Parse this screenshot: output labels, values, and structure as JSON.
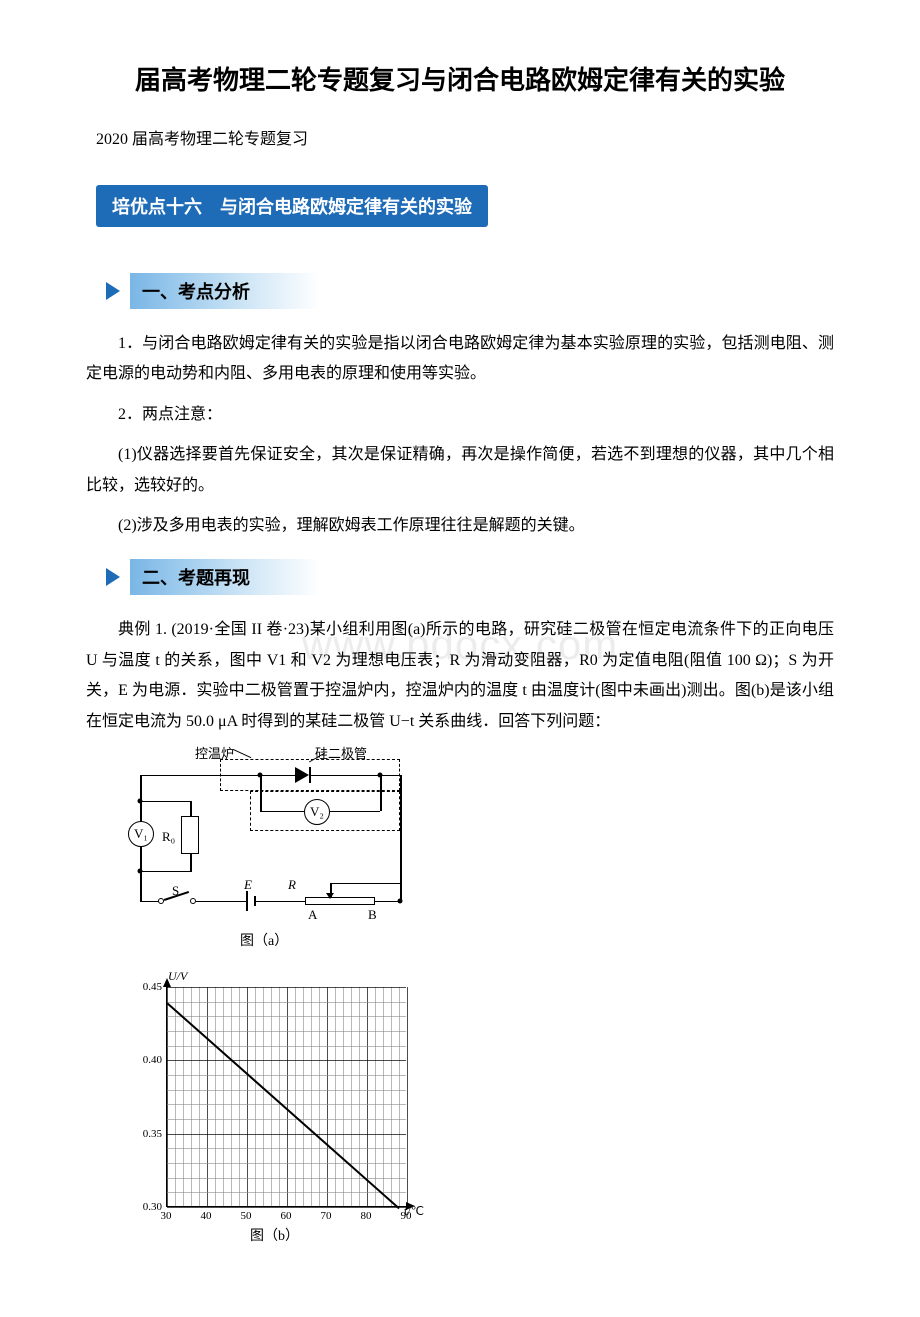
{
  "title": "届高考物理二轮专题复习与闭合电路欧姆定律有关的实验",
  "subtitle": "2020 届高考物理二轮专题复习",
  "banner_main": "培优点十六　与闭合电路欧姆定律有关的实验",
  "section1_header": "一、考点分析",
  "para1": "1．与闭合电路欧姆定律有关的实验是指以闭合电路欧姆定律为基本实验原理的实验，包括测电阻、测定电源的电动势和内阻、多用电表的原理和使用等实验。",
  "para2": "2．两点注意：",
  "para3": "(1)仪器选择要首先保证安全，其次是保证精确，再次是操作简便，若选不到理想的仪器，其中几个相比较，选较好的。",
  "para4": "(2)涉及多用电表的实验，理解欧姆表工作原理往往是解题的关键。",
  "section2_header": "二、考题再现",
  "para5": "典例 1. (2019·全国 II 卷·23)某小组利用图(a)所示的电路，研究硅二极管在恒定电流条件下的正向电压 U 与温度 t 的关系，图中 V1 和 V2 为理想电压表；R 为滑动变阻器，R0 为定值电阻(阻值 100 Ω)；S 为开关，E 为电源．实验中二极管置于控温炉内，控温炉内的温度 t 由温度计(图中未画出)测出。图(b)是该小组在恒定电流为 50.0 μA 时得到的某硅二极管 U−t 关系曲线．回答下列问题：",
  "watermark": "www.bdocx.com",
  "circuit": {
    "thermo_label": "控温炉",
    "diode_label": "硅二极管",
    "v1_label": "V₁",
    "v2_label": "V₂",
    "r0_label": "R₀",
    "switch_label": "S",
    "emf_label": "E",
    "rheo_label": "R",
    "rheo_a": "A",
    "rheo_b": "B",
    "caption": "图（a）"
  },
  "chart": {
    "type": "line",
    "ylabel": "U/V",
    "xlabel": "t/℃",
    "xlim": [
      30,
      90
    ],
    "ylim": [
      0.3,
      0.45
    ],
    "x_ticks": [
      30,
      40,
      50,
      60,
      70,
      80,
      90
    ],
    "y_ticks": [
      0.3,
      0.35,
      0.4,
      0.45
    ],
    "x_minors": 5,
    "y_minors": 5,
    "line_points": [
      [
        30,
        0.44
      ],
      [
        88,
        0.3
      ]
    ],
    "line_color": "#000000",
    "line_width": 2,
    "background_color": "#ffffff",
    "grid_color": "#888888",
    "caption": "图（b）"
  }
}
